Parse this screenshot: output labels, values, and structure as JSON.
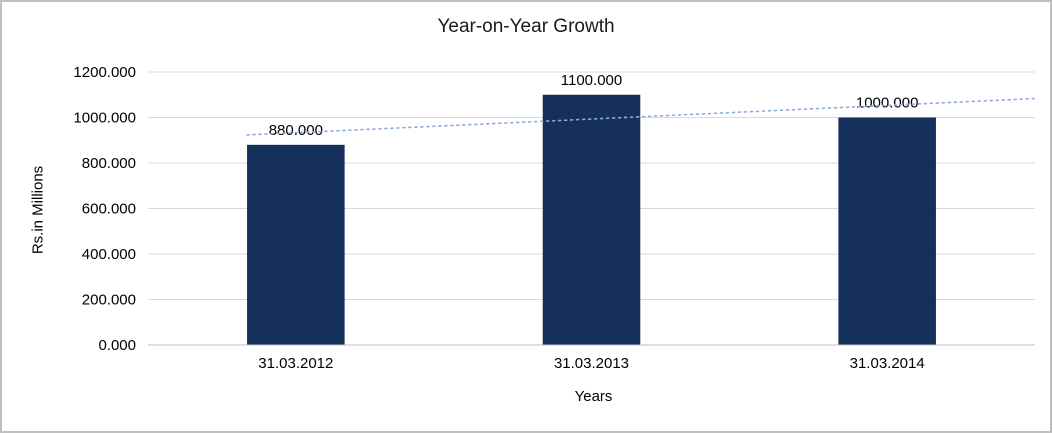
{
  "chart_data": {
    "type": "bar",
    "title": "Year-on-Year Growth",
    "xlabel": "Years",
    "ylabel": "Rs.in Millions",
    "categories": [
      "31.03.2012",
      "31.03.2013",
      "31.03.2014"
    ],
    "values": [
      880,
      1100,
      1000
    ],
    "data_labels": [
      "880.000",
      "1100.000",
      "1000.000"
    ],
    "ylim": [
      0,
      1200
    ],
    "y_tick_step": 200,
    "y_tick_labels": [
      "0.000",
      "200.000",
      "400.000",
      "600.000",
      "800.000",
      "1000.000",
      "1200.000"
    ],
    "grid": true,
    "legend": "none",
    "trendline": {
      "type": "linear",
      "style": "dotted",
      "color": "#8FAADC"
    },
    "colors": {
      "bar": "#16305C",
      "gridline": "#D9D9D9",
      "axis_line": "#BFBFBF",
      "text": "#000000",
      "background": "#FFFFFF",
      "border": "#BFBFBF"
    }
  }
}
